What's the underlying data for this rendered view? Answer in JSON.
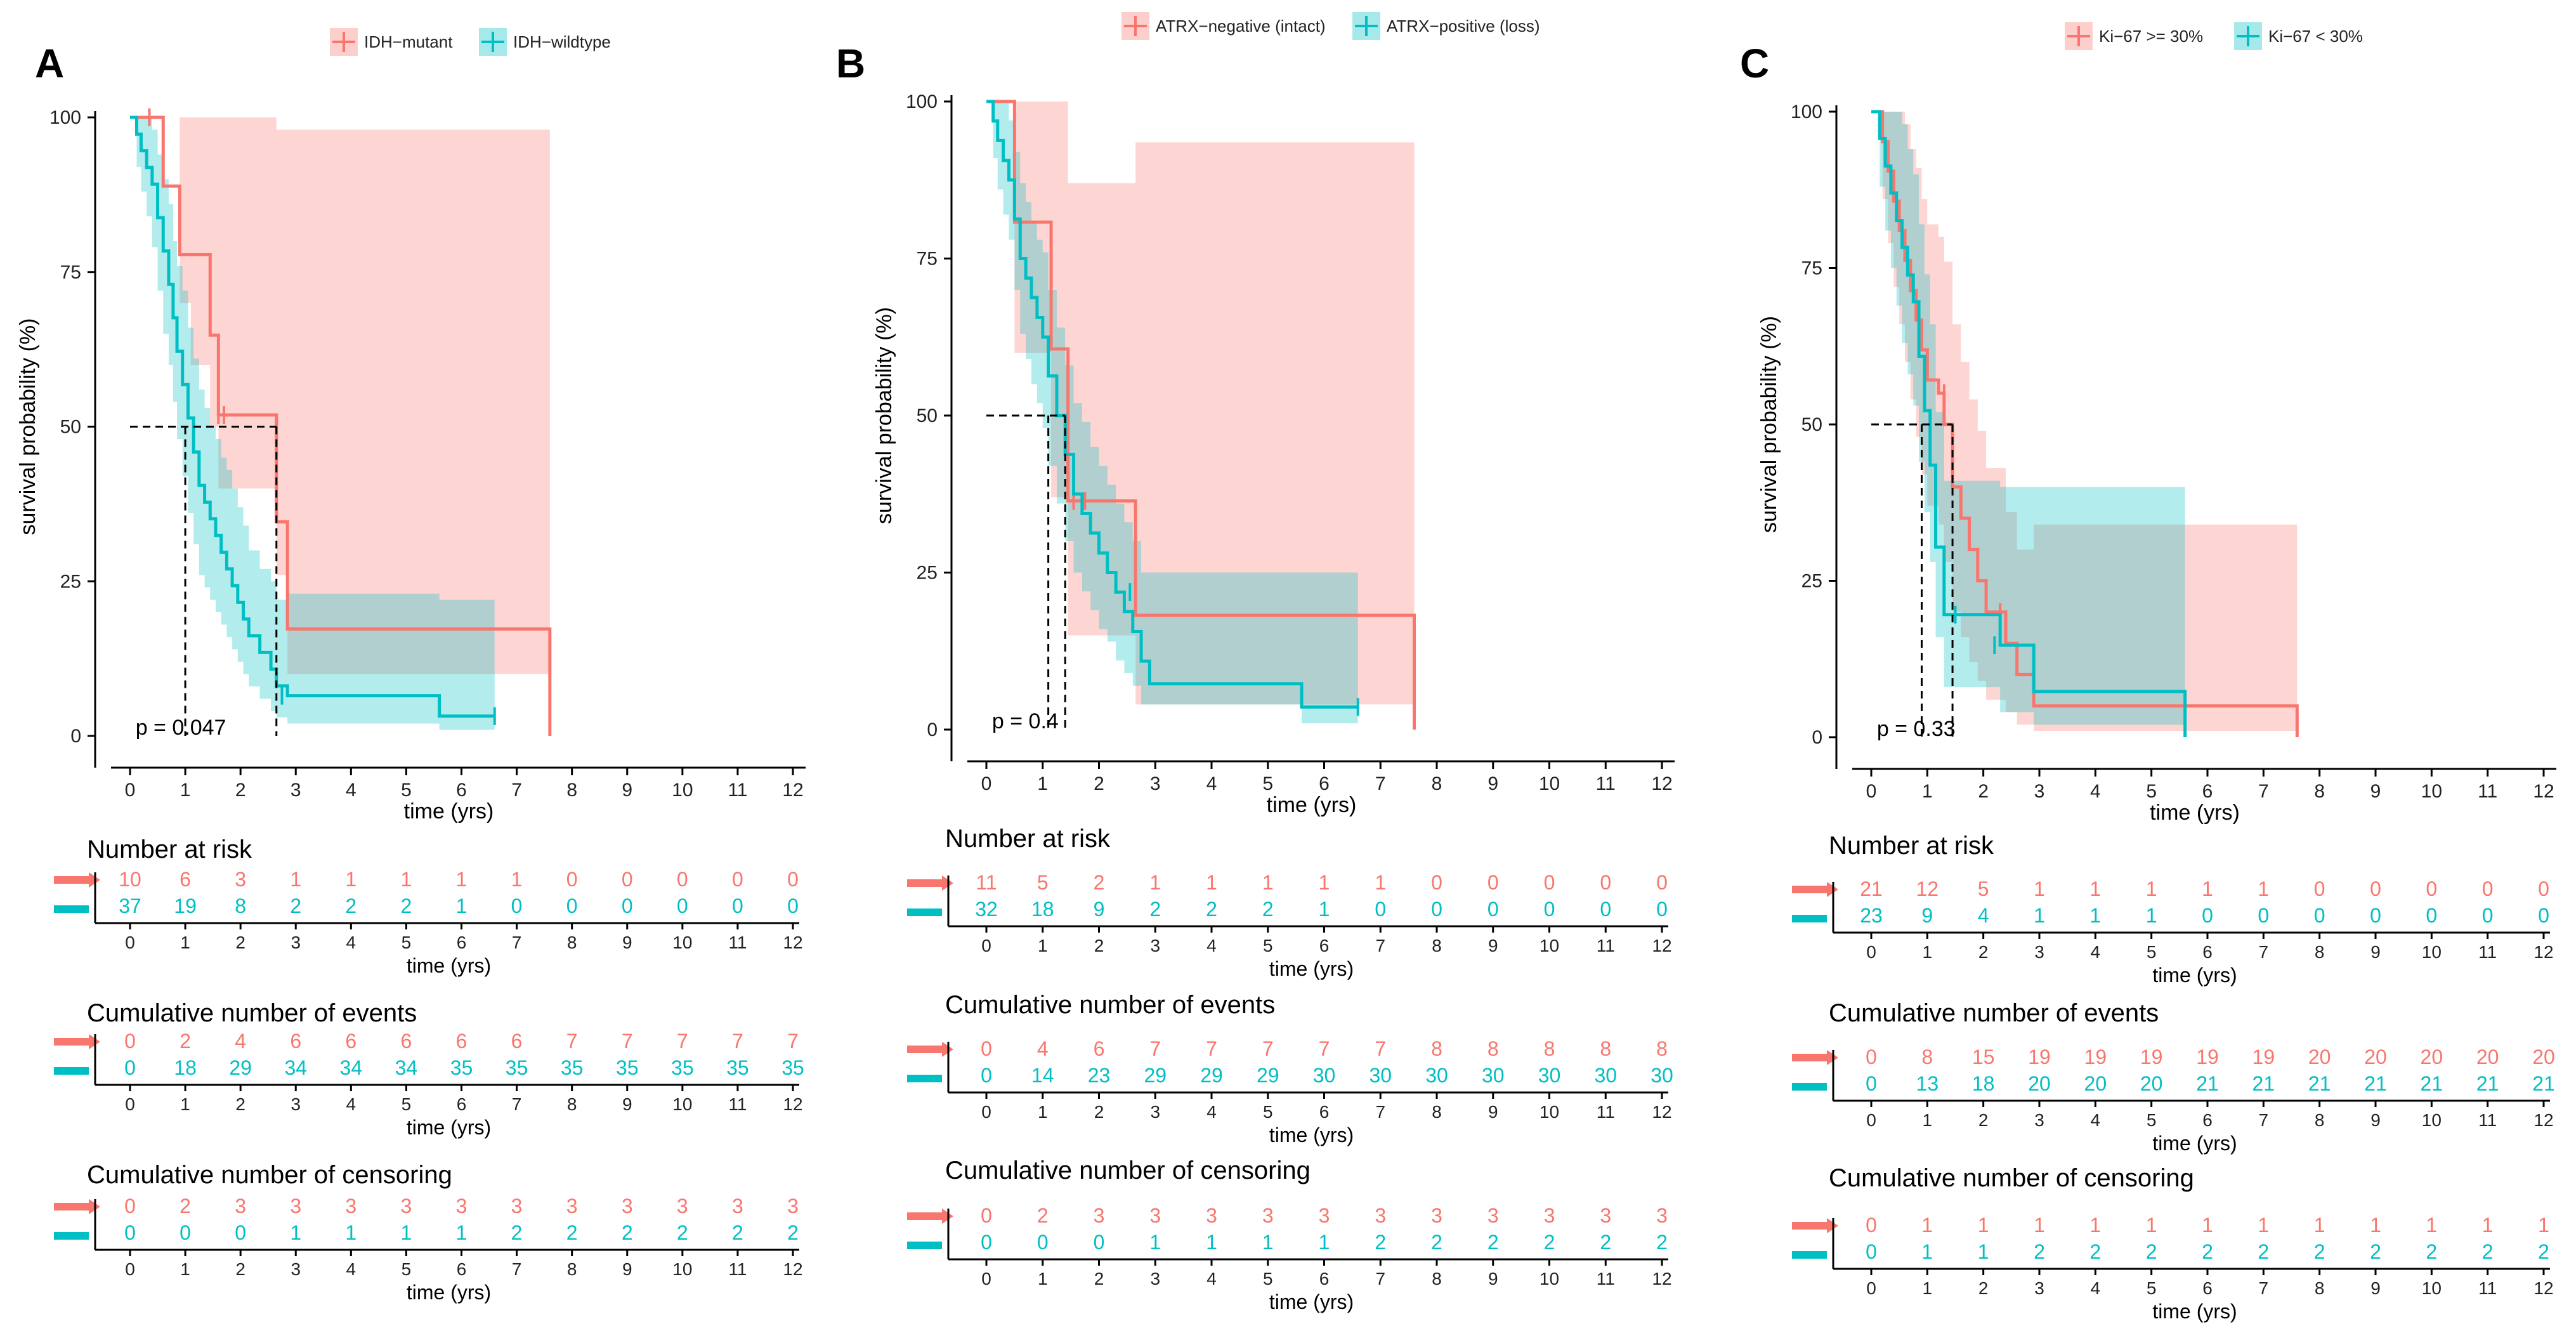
{
  "chart_data": [
    {
      "type": "line",
      "panel_label": "A",
      "legend": [
        "IDH−mutant",
        "IDH−wildtype"
      ],
      "xlabel": "time (yrs)",
      "ylabel": "survival probability (%)",
      "x_ticks": [
        "0",
        "1",
        "2",
        "3",
        "4",
        "5",
        "6",
        "7",
        "8",
        "9",
        "10",
        "11",
        "12"
      ],
      "y_ticks": [
        "0",
        "25",
        "50",
        "75",
        "100"
      ],
      "xlim": [
        0,
        12
      ],
      "ylim": [
        0,
        100
      ],
      "pvalue": "p = 0.047",
      "median_times": [
        1.0,
        2.65
      ],
      "series": [
        {
          "name": "IDH−mutant",
          "step_x": [
            0,
            0.6,
            0.9,
            1.1,
            1.45,
            1.6,
            2.65,
            2.85,
            7.6
          ],
          "step_y": [
            100,
            88.9,
            77.8,
            77.8,
            64.8,
            51.9,
            34.6,
            17.3,
            0
          ],
          "ci_upper": [
            100,
            100,
            100,
            100,
            100,
            100,
            98,
            98,
            98
          ],
          "ci_lower": [
            100,
            100,
            70,
            60,
            50,
            40,
            26,
            10,
            3
          ],
          "censor_x": [
            0.35,
            1.6,
            1.7
          ],
          "censor_y": [
            100,
            51.9,
            51.9
          ]
        },
        {
          "name": "IDH−wildtype",
          "step_x": [
            0,
            0.12,
            0.2,
            0.3,
            0.4,
            0.5,
            0.6,
            0.7,
            0.78,
            0.85,
            0.95,
            1.05,
            1.15,
            1.25,
            1.35,
            1.45,
            1.55,
            1.65,
            1.75,
            1.85,
            1.95,
            2.05,
            2.15,
            2.35,
            2.55,
            2.65,
            2.85,
            3.05,
            5.6,
            6.6
          ],
          "step_y": [
            100,
            97.3,
            94.6,
            91.9,
            89.2,
            83.8,
            78.4,
            73,
            67.6,
            62.2,
            56.8,
            51.4,
            45.9,
            40.5,
            37.8,
            35.1,
            32.4,
            29.7,
            27,
            24.3,
            21.6,
            18.9,
            16.2,
            13.5,
            10.8,
            8.1,
            6.5,
            6.5,
            3.2,
            3.2
          ],
          "ci_upper": [
            100,
            100,
            100,
            100,
            98,
            94,
            90,
            86,
            80,
            76,
            72,
            66,
            61,
            56,
            53,
            50,
            48,
            45,
            43,
            40,
            37,
            34,
            30,
            27,
            25,
            22,
            23,
            23,
            22,
            22
          ],
          "ci_lower": [
            100,
            92,
            88,
            84,
            79,
            72,
            65,
            60,
            54,
            48,
            42,
            36,
            31,
            26,
            24,
            22,
            20,
            18,
            16,
            14,
            12,
            10,
            8,
            6,
            4,
            3,
            2,
            2,
            1,
            1
          ],
          "censor_x": [
            2.75,
            6.6
          ],
          "censor_y": [
            6.5,
            3.2
          ]
        }
      ],
      "tables": [
        {
          "title": "Number at risk",
          "rows": [
            [
              "10",
              "6",
              "3",
              "1",
              "1",
              "1",
              "1",
              "1",
              "0",
              "0",
              "0",
              "0",
              "0"
            ],
            [
              "37",
              "19",
              "8",
              "2",
              "2",
              "2",
              "1",
              "0",
              "0",
              "0",
              "0",
              "0",
              "0"
            ]
          ]
        },
        {
          "title": "Cumulative number of events",
          "rows": [
            [
              "0",
              "2",
              "4",
              "6",
              "6",
              "6",
              "6",
              "6",
              "7",
              "7",
              "7",
              "7",
              "7"
            ],
            [
              "0",
              "18",
              "29",
              "34",
              "34",
              "34",
              "35",
              "35",
              "35",
              "35",
              "35",
              "35",
              "35"
            ]
          ]
        },
        {
          "title": "Cumulative number of censoring",
          "rows": [
            [
              "0",
              "2",
              "3",
              "3",
              "3",
              "3",
              "3",
              "3",
              "3",
              "3",
              "3",
              "3",
              "3"
            ],
            [
              "0",
              "0",
              "0",
              "1",
              "1",
              "1",
              "1",
              "2",
              "2",
              "2",
              "2",
              "2",
              "2"
            ]
          ]
        }
      ]
    },
    {
      "type": "line",
      "panel_label": "B",
      "legend": [
        "ATRX−negative (intact)",
        "ATRX−positive (loss)"
      ],
      "xlabel": "time (yrs)",
      "ylabel": "survival probability (%)",
      "x_ticks": [
        "0",
        "1",
        "2",
        "3",
        "4",
        "5",
        "6",
        "7",
        "8",
        "9",
        "10",
        "11",
        "12"
      ],
      "y_ticks": [
        "0",
        "25",
        "50",
        "75",
        "100"
      ],
      "xlim": [
        0,
        12
      ],
      "ylim": [
        0,
        100
      ],
      "pvalue": "p = 0.4",
      "median_times": [
        1.1,
        1.4
      ],
      "series": [
        {
          "name": "ATRX−negative (intact)",
          "step_x": [
            0,
            0.5,
            1.15,
            1.45,
            2.65,
            7.6
          ],
          "step_y": [
            100,
            80.8,
            60.6,
            36.4,
            18.2,
            0
          ],
          "ci_upper": [
            100,
            100,
            100,
            87,
            93.5,
            93.5
          ],
          "ci_lower": [
            100,
            60,
            37,
            15,
            4,
            4
          ],
          "censor_x": [
            1.55,
            1.75
          ],
          "censor_y": [
            36.4,
            36.4
          ]
        },
        {
          "name": "ATRX−positive (loss)",
          "step_x": [
            0,
            0.12,
            0.2,
            0.3,
            0.4,
            0.5,
            0.6,
            0.7,
            0.8,
            0.9,
            1.0,
            1.1,
            1.25,
            1.4,
            1.55,
            1.7,
            1.85,
            2.0,
            2.15,
            2.3,
            2.45,
            2.6,
            2.75,
            2.9,
            5.6,
            6.6
          ],
          "step_y": [
            100,
            96.9,
            93.8,
            90.6,
            87.5,
            81.3,
            75,
            71.9,
            68.8,
            65.6,
            62.5,
            56.3,
            50,
            43.8,
            37.5,
            34.4,
            31.3,
            28.1,
            25,
            21.9,
            18.8,
            15.6,
            10.9,
            7.3,
            3.6,
            3.6
          ],
          "ci_upper": [
            100,
            100,
            100,
            100,
            97,
            92,
            87,
            84,
            81,
            78,
            76,
            70,
            64,
            58,
            52,
            49,
            45,
            42,
            39,
            36,
            33,
            30,
            25,
            25,
            25,
            25
          ],
          "ci_lower": [
            100,
            91,
            86,
            82,
            78,
            70,
            63,
            59,
            55,
            52,
            48,
            42,
            36,
            30,
            25,
            22,
            19,
            16,
            14,
            11,
            9,
            7,
            4,
            4,
            1,
            1
          ],
          "censor_x": [
            2.55,
            6.6
          ],
          "censor_y": [
            21.9,
            3.6
          ]
        }
      ],
      "tables": [
        {
          "title": "Number at risk",
          "rows": [
            [
              "11",
              "5",
              "2",
              "1",
              "1",
              "1",
              "1",
              "1",
              "0",
              "0",
              "0",
              "0",
              "0"
            ],
            [
              "32",
              "18",
              "9",
              "2",
              "2",
              "2",
              "1",
              "0",
              "0",
              "0",
              "0",
              "0",
              "0"
            ]
          ]
        },
        {
          "title": "Cumulative number of events",
          "rows": [
            [
              "0",
              "4",
              "6",
              "7",
              "7",
              "7",
              "7",
              "7",
              "8",
              "8",
              "8",
              "8",
              "8"
            ],
            [
              "0",
              "14",
              "23",
              "29",
              "29",
              "29",
              "30",
              "30",
              "30",
              "30",
              "30",
              "30",
              "30"
            ]
          ]
        },
        {
          "title": "Cumulative number of censoring",
          "rows": [
            [
              "0",
              "2",
              "3",
              "3",
              "3",
              "3",
              "3",
              "3",
              "3",
              "3",
              "3",
              "3",
              "3"
            ],
            [
              "0",
              "0",
              "0",
              "1",
              "1",
              "1",
              "1",
              "2",
              "2",
              "2",
              "2",
              "2",
              "2"
            ]
          ]
        }
      ]
    },
    {
      "type": "line",
      "panel_label": "C",
      "legend": [
        "Ki−67 >= 30%",
        "Ki−67 < 30%"
      ],
      "xlabel": "time (yrs)",
      "ylabel": "survival probability (%)",
      "x_ticks": [
        "0",
        "1",
        "2",
        "3",
        "4",
        "5",
        "6",
        "7",
        "8",
        "9",
        "10",
        "11",
        "12"
      ],
      "y_ticks": [
        "0",
        "25",
        "50",
        "75",
        "100"
      ],
      "xlim": [
        0,
        12
      ],
      "ylim": [
        0,
        100
      ],
      "pvalue": "p = 0.33",
      "median_times": [
        0.9,
        1.45
      ],
      "series": [
        {
          "name": "Ki−67 >= 30%",
          "step_x": [
            0,
            0.2,
            0.3,
            0.4,
            0.5,
            0.6,
            0.7,
            0.8,
            0.9,
            1.0,
            1.1,
            1.2,
            1.3,
            1.45,
            1.6,
            1.75,
            1.9,
            2.05,
            2.2,
            2.4,
            2.6,
            2.75,
            2.9,
            7.6
          ],
          "step_y": [
            100,
            95.2,
            90.5,
            85.7,
            81,
            76.2,
            71.4,
            66.7,
            61.9,
            57.1,
            57.1,
            55,
            50,
            40,
            35,
            30,
            25,
            20,
            20,
            15,
            10,
            10,
            5,
            0
          ],
          "ci_upper": [
            100,
            100,
            100,
            100,
            100,
            98,
            94,
            91,
            86,
            82,
            82,
            80,
            76,
            66,
            60,
            54,
            49,
            43,
            43,
            36,
            30,
            30,
            34,
            34
          ],
          "ci_lower": [
            100,
            86,
            79,
            72,
            66,
            60,
            54,
            48,
            42,
            37,
            37,
            34,
            28,
            20,
            16,
            12,
            9,
            6,
            6,
            4,
            2,
            2,
            1,
            1
          ],
          "censor_x": [
            1.3,
            2.3
          ],
          "censor_y": [
            55,
            20
          ]
        },
        {
          "name": "Ki−67 < 30%",
          "step_x": [
            0,
            0.15,
            0.25,
            0.35,
            0.45,
            0.55,
            0.65,
            0.75,
            0.85,
            0.95,
            1.05,
            1.15,
            1.3,
            1.55,
            2.3,
            2.6,
            2.9,
            5.6
          ],
          "step_y": [
            100,
            95.7,
            91.3,
            87,
            82.6,
            78.3,
            73.9,
            69.6,
            60.9,
            52.2,
            43.5,
            30.4,
            19.6,
            19.6,
            14.7,
            14.7,
            7.3,
            0
          ],
          "ci_upper": [
            100,
            100,
            100,
            100,
            100,
            98,
            94,
            90,
            82,
            74,
            66,
            52,
            41,
            41,
            40,
            40,
            40,
            40
          ],
          "ci_lower": [
            100,
            88,
            81,
            75,
            69,
            63,
            58,
            53,
            44,
            36,
            28,
            16,
            8,
            8,
            4,
            4,
            2,
            1
          ],
          "censor_x": [
            1.5,
            2.2
          ],
          "censor_y": [
            19.6,
            14.7
          ]
        }
      ],
      "tables": [
        {
          "title": "Number at risk",
          "rows": [
            [
              "21",
              "12",
              "5",
              "1",
              "1",
              "1",
              "1",
              "1",
              "0",
              "0",
              "0",
              "0",
              "0"
            ],
            [
              "23",
              "9",
              "4",
              "1",
              "1",
              "1",
              "0",
              "0",
              "0",
              "0",
              "0",
              "0",
              "0"
            ]
          ]
        },
        {
          "title": "Cumulative number of events",
          "rows": [
            [
              "0",
              "8",
              "15",
              "19",
              "19",
              "19",
              "19",
              "19",
              "20",
              "20",
              "20",
              "20",
              "20"
            ],
            [
              "0",
              "13",
              "18",
              "20",
              "20",
              "20",
              "21",
              "21",
              "21",
              "21",
              "21",
              "21",
              "21"
            ]
          ]
        },
        {
          "title": "Cumulative number of censoring",
          "rows": [
            [
              "0",
              "1",
              "1",
              "1",
              "1",
              "1",
              "1",
              "1",
              "1",
              "1",
              "1",
              "1",
              "1"
            ],
            [
              "0",
              "1",
              "1",
              "2",
              "2",
              "2",
              "2",
              "2",
              "2",
              "2",
              "2",
              "2",
              "2"
            ]
          ]
        }
      ]
    }
  ],
  "colors": {
    "group1": "#f8766d",
    "group2": "#00bfc4",
    "group1_band": "#f8766d",
    "group2_band": "#00bfc4",
    "axis": "#000000",
    "median_line": "#000000"
  }
}
